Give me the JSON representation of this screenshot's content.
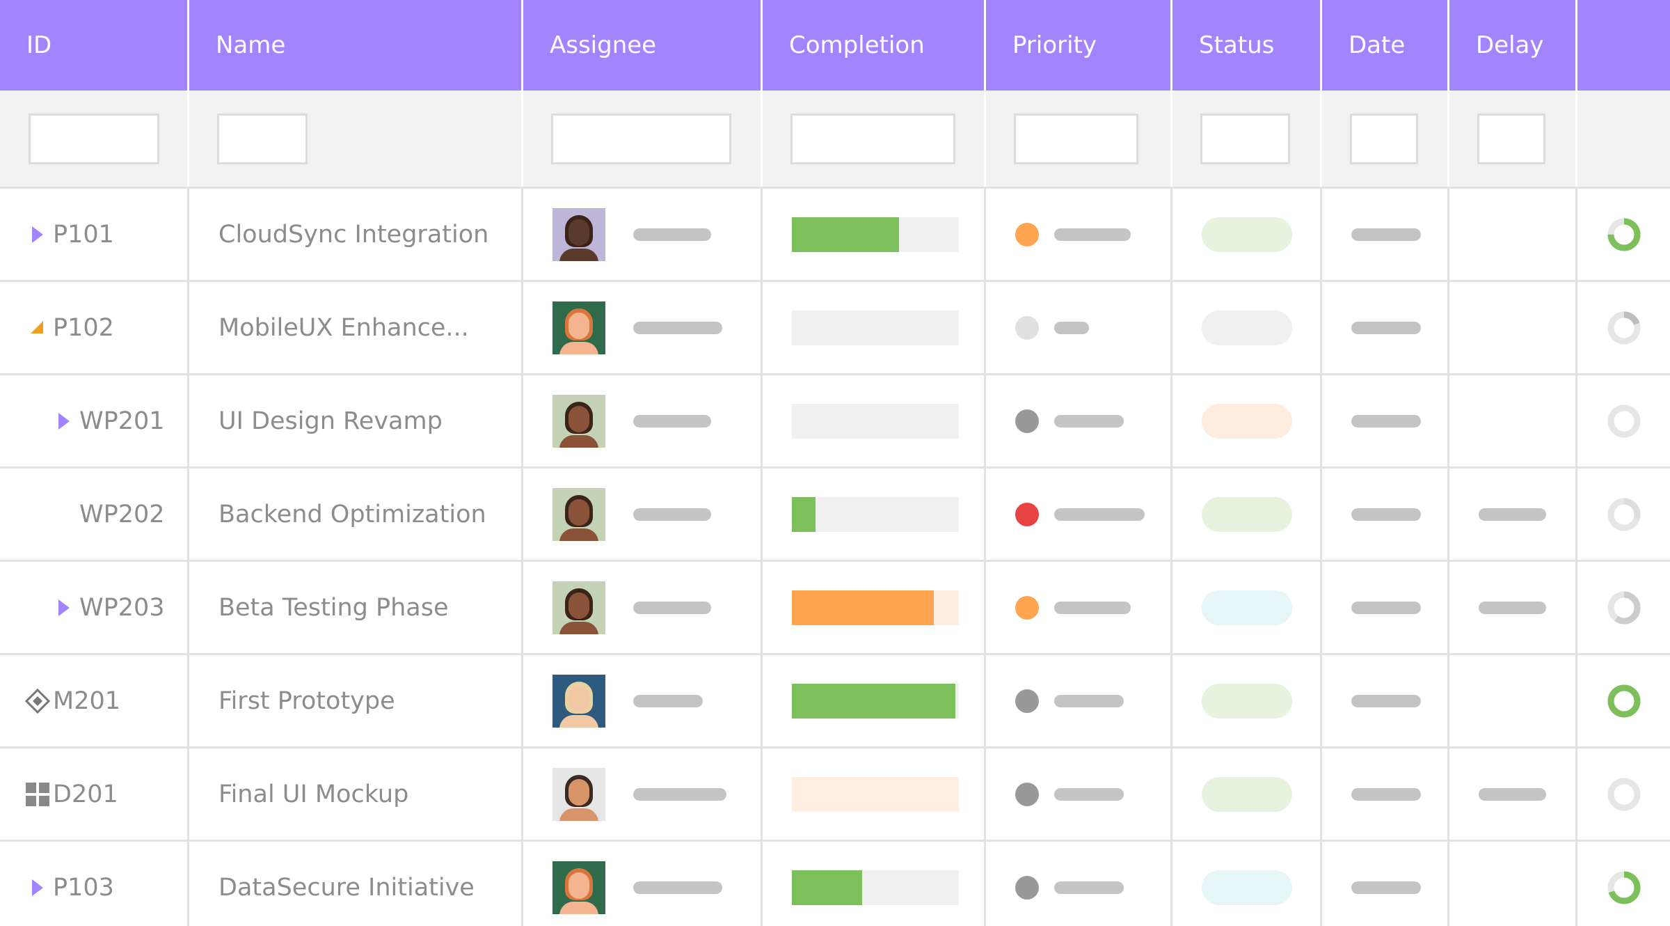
{
  "header": {
    "columns": [
      "ID",
      "Name",
      "Assignee",
      "Completion",
      "Priority",
      "Status",
      "Date",
      "Delay"
    ]
  },
  "table": {
    "rows": [
      {
        "id": "P101",
        "name": "CloudSync Integration"
      },
      {
        "id": "P102",
        "name": "MobileUX Enhance..."
      },
      {
        "id": "WP201",
        "name": "UI Design Revamp"
      },
      {
        "id": "WP202",
        "name": "Backend Optimization"
      },
      {
        "id": "WP203",
        "name": "Beta Testing Phase"
      },
      {
        "id": "M201",
        "name": "First Prototype"
      },
      {
        "id": "D201",
        "name": "Final UI Mockup"
      },
      {
        "id": "P103",
        "name": "DataSecure Initiative"
      }
    ]
  }
}
